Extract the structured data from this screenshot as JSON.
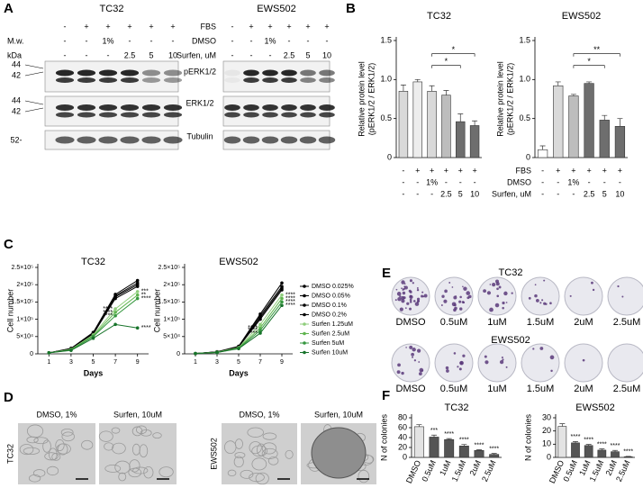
{
  "letters": [
    "A",
    "B",
    "C",
    "D",
    "E",
    "F"
  ],
  "blot": {
    "cell_lines": [
      "TC32",
      "EWS502"
    ],
    "mw": "M.w.",
    "kda": "kDa",
    "row_labels": [
      "FBS",
      "DMSO",
      "Surfen, uM"
    ],
    "cells": [
      [
        "-",
        "+",
        "+",
        "+",
        "+",
        "+"
      ],
      [
        "-",
        "-",
        "1%",
        "-",
        "-",
        "-"
      ],
      [
        "-",
        "-",
        "-",
        "2.5",
        "5",
        "10"
      ]
    ],
    "bands": [
      "pERK1/2",
      "ERK1/2",
      "Tubulin"
    ],
    "markers": [
      "44",
      "42",
      "44",
      "42",
      "52-"
    ]
  },
  "treatments": {
    "row_labels": [
      "FBS",
      "DMSO",
      "Surfen, uM"
    ],
    "cells": [
      [
        "-",
        "+",
        "+",
        "+",
        "+",
        "+"
      ],
      [
        "-",
        "-",
        "1%",
        "-",
        "-",
        "-"
      ],
      [
        "-",
        "-",
        "-",
        "2.5",
        "5",
        "10"
      ]
    ]
  },
  "chart_data": [
    {
      "type": "bar",
      "title": "TC32",
      "ylabel": [
        "Relative protein level",
        "(pERK1/2  / ERK1/2)"
      ],
      "values": [
        0.85,
        0.97,
        0.85,
        0.8,
        0.46,
        0.41
      ],
      "errors": [
        0.08,
        0.03,
        0.07,
        0.06,
        0.1,
        0.06
      ],
      "colors": [
        "#d9d9d9",
        "#ededed",
        "#d9d9d9",
        "#bdbdbd",
        "#6e6e6e",
        "#6e6e6e"
      ],
      "ylim": [
        0,
        1.5
      ],
      "yticks": [
        0,
        0.5,
        {
          "value": 1,
          "label": "1.0"
        },
        1.5
      ],
      "brackets": [
        {
          "label": "*"
        },
        {
          "label": "*"
        }
      ]
    },
    {
      "type": "bar",
      "title": "EWS502",
      "ylabel": [
        "Relative protein level",
        "(pERK1/2  / ERK1/2)"
      ],
      "values": [
        0.1,
        0.92,
        0.79,
        0.95,
        0.48,
        0.4
      ],
      "errors": [
        0.05,
        0.05,
        0.02,
        0.02,
        0.06,
        0.1
      ],
      "colors": [
        "#ffffff",
        "#d9d9d9",
        "#bdbdbd",
        "#6e6e6e",
        "#6e6e6e",
        "#6e6e6e"
      ],
      "ylim": [
        0,
        1.5
      ],
      "yticks": [
        0,
        0.5,
        {
          "value": 1,
          "label": "1.0"
        },
        1.5
      ],
      "brackets": [
        {
          "label": "**"
        },
        {
          "label": "*"
        }
      ]
    },
    {
      "type": "line",
      "title": "TC32",
      "xlabel": "Days",
      "ylabel": "Cell number",
      "x": [
        1,
        3,
        5,
        7,
        9
      ],
      "xlim": [
        0,
        10
      ],
      "xticks": [
        1,
        3,
        5,
        7,
        9
      ],
      "ylim": [
        0,
        250000
      ],
      "yticks": [
        0,
        {
          "value": 50000,
          "label": "5×10⁴"
        },
        {
          "value": 100000,
          "label": "1×10⁵"
        },
        {
          "value": 150000,
          "label": "1.5×10⁵"
        },
        {
          "value": 200000,
          "label": "2×10⁵"
        },
        {
          "value": 250000,
          "label": "2.5×10⁵"
        }
      ],
      "series": [
        {
          "color": "#000000",
          "values": [
            3000,
            16000,
            62000,
            172000,
            212000
          ]
        },
        {
          "color": "#000000",
          "values": [
            3000,
            15000,
            60000,
            168000,
            205000
          ]
        },
        {
          "color": "#000000",
          "values": [
            3000,
            14000,
            58000,
            165000,
            200000
          ]
        },
        {
          "color": "#000000",
          "values": [
            3000,
            14000,
            57000,
            160000,
            195000
          ]
        },
        {
          "color": "#8fce7c",
          "values": [
            3000,
            13000,
            55000,
            130000,
            180000
          ],
          "sig": [
            null,
            null,
            null,
            "****",
            "***"
          ]
        },
        {
          "color": "#5fb54e",
          "values": [
            3000,
            12000,
            52000,
            120000,
            170000
          ],
          "sig": [
            null,
            null,
            null,
            "****",
            "**"
          ]
        },
        {
          "color": "#35973f",
          "values": [
            3000,
            11000,
            50000,
            110000,
            160000
          ],
          "sig": [
            null,
            null,
            null,
            "****",
            "****"
          ]
        },
        {
          "color": "#17732a",
          "values": [
            3000,
            10000,
            45000,
            85000,
            75000
          ],
          "sig": [
            null,
            null,
            null,
            null,
            "****"
          ]
        }
      ]
    },
    {
      "type": "line",
      "title": "EWS502",
      "xlabel": "Days",
      "ylabel": "Cell number",
      "x": [
        1,
        3,
        5,
        7,
        9
      ],
      "xlim": [
        0,
        10
      ],
      "xticks": [
        1,
        3,
        5,
        7,
        9
      ],
      "ylim": [
        0,
        250000
      ],
      "yticks": [
        0,
        {
          "value": 50000,
          "label": "5×10⁴"
        },
        {
          "value": 100000,
          "label": "1×10⁵"
        },
        {
          "value": 150000,
          "label": "1.5×10⁵"
        },
        {
          "value": 200000,
          "label": "2×10⁵"
        },
        {
          "value": 250000,
          "label": "2.5×10⁵"
        }
      ],
      "series": [
        {
          "name": "DMSO 0.025%",
          "color": "#000000",
          "values": [
            1000,
            6000,
            22000,
            115000,
            205000
          ]
        },
        {
          "name": "DMSO 0.05%",
          "color": "#000000",
          "values": [
            1000,
            6000,
            21000,
            110000,
            195000
          ]
        },
        {
          "name": "DMSO 0.1%",
          "color": "#000000",
          "values": [
            1000,
            5500,
            20000,
            105000,
            190000
          ]
        },
        {
          "name": "DMSO 0.2%",
          "color": "#000000",
          "values": [
            1000,
            5000,
            20000,
            100000,
            185000
          ]
        },
        {
          "name": "Surfen 1.25uM",
          "color": "#8fce7c",
          "values": [
            1000,
            5000,
            18000,
            85000,
            170000
          ],
          "sig": [
            null,
            null,
            null,
            null,
            "****"
          ]
        },
        {
          "name": "Surfen 2.5uM",
          "color": "#5fb54e",
          "values": [
            1000,
            4500,
            17000,
            75000,
            160000
          ],
          "sig": [
            null,
            null,
            null,
            "****",
            "****"
          ]
        },
        {
          "name": "Surfen 5uM",
          "color": "#35973f",
          "values": [
            1000,
            4000,
            16000,
            68000,
            150000
          ],
          "sig": [
            null,
            null,
            null,
            "****",
            "****"
          ]
        },
        {
          "name": "Surfen 10uM",
          "color": "#17732a",
          "values": [
            1000,
            4000,
            15000,
            60000,
            140000
          ],
          "sig": [
            null,
            null,
            null,
            "****",
            "****"
          ]
        }
      ]
    },
    {
      "type": "bar",
      "title": "TC32",
      "ylabel": "N of colonies",
      "categories": [
        "DMSO",
        "0.5uM",
        "1uM",
        "1.5uM",
        "2uM",
        "2.5uM"
      ],
      "values": [
        62,
        41,
        36,
        23,
        14,
        6
      ],
      "errors": [
        4,
        4,
        2,
        3,
        1.5,
        2
      ],
      "sig": [
        null,
        "***",
        "****",
        "****",
        "****",
        "****"
      ],
      "colors": [
        "#e3e3e3",
        "#555555",
        "#555555",
        "#555555",
        "#555555",
        "#555555"
      ],
      "ylim": [
        0,
        80
      ],
      "yticks": [
        0,
        20,
        40,
        60,
        80
      ]
    },
    {
      "type": "bar",
      "title": "EWS502",
      "ylabel": "N of colonies",
      "categories": [
        "DMSO",
        "0.5uM",
        "1uM",
        "1.5uM",
        "2uM",
        "2.5uM"
      ],
      "values": [
        23.5,
        11,
        9,
        5.5,
        4.3,
        0.5
      ],
      "errors": [
        2,
        1,
        0.8,
        1,
        1,
        0.3
      ],
      "sig": [
        null,
        "****",
        "****",
        "****",
        "****",
        "****"
      ],
      "colors": [
        "#e3e3e3",
        "#555555",
        "#555555",
        "#555555",
        "#555555",
        "#555555"
      ],
      "ylim": [
        0,
        30
      ],
      "yticks": [
        0,
        10,
        20,
        30
      ]
    }
  ],
  "microscopy": {
    "rows": [
      "TC32",
      "EWS502"
    ],
    "columns": [
      "DMSO, 1%",
      "Surfen, 10uM",
      "DMSO, 1%",
      "Surfen, 10uM"
    ]
  },
  "colonies": {
    "rows": [
      {
        "title": "TC32",
        "labels": [
          "DMSO",
          "0.5uM",
          "1uM",
          "1.5uM",
          "2uM",
          "2.5uM"
        ]
      },
      {
        "title": "EWS502",
        "labels": [
          "DMSO",
          "0.5uM",
          "1uM",
          "1.5uM",
          "2uM",
          "2.5uM"
        ]
      }
    ]
  }
}
